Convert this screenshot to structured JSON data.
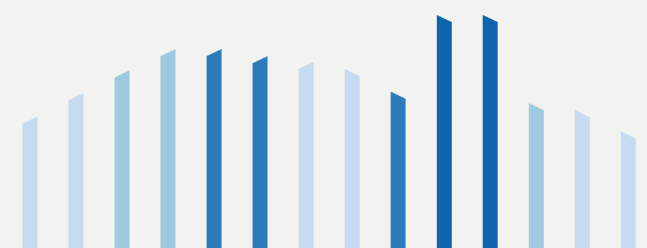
{
  "chart_data": {
    "type": "bar",
    "values": [
      185,
      218,
      250,
      280,
      280,
      270,
      262,
      252,
      220,
      328,
      328,
      204,
      194,
      164
    ],
    "colors": [
      "#c6dbef",
      "#c6dbef",
      "#9ecae1",
      "#9ecae1",
      "#2b7bba",
      "#2b7bba",
      "#c6dbef",
      "#c6dbef",
      "#2b7bba",
      "#0b64ad",
      "#0b64ad",
      "#9ecae1",
      "#c6dbef",
      "#c6dbef"
    ]
  }
}
